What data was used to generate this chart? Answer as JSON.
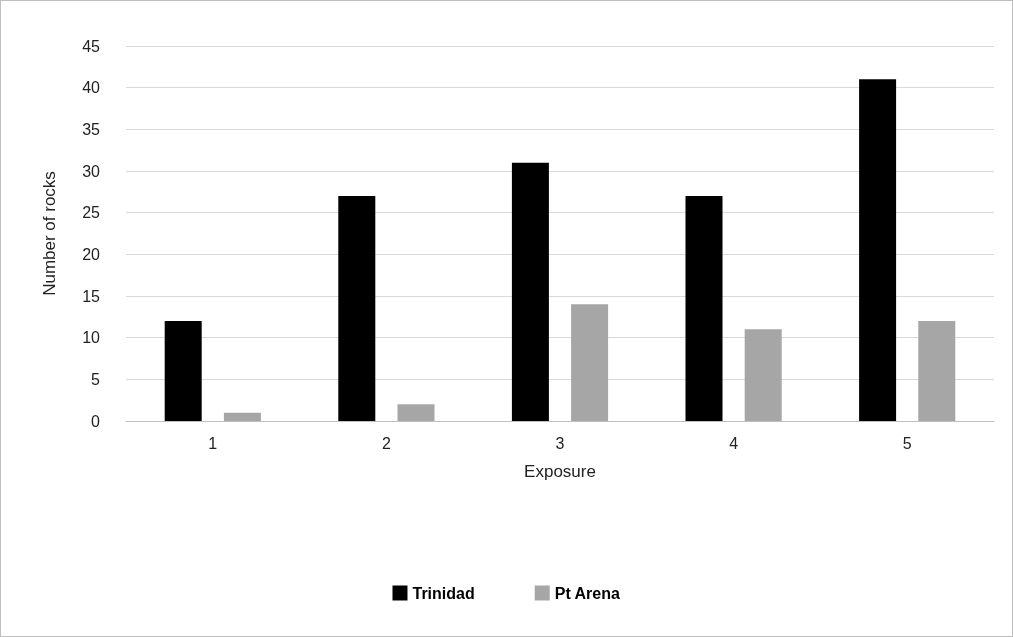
{
  "chart_data": {
    "type": "bar",
    "xlabel": "Exposure",
    "ylabel": "Number of rocks",
    "categories": [
      "1",
      "2",
      "3",
      "4",
      "5"
    ],
    "series": [
      {
        "name": "Trinidad",
        "color": "#000000",
        "values": [
          12,
          27,
          31,
          27,
          41
        ]
      },
      {
        "name": "Pt Arena",
        "color": "#a6a6a6",
        "values": [
          1,
          2,
          14,
          11,
          12
        ]
      }
    ],
    "ylim": [
      0,
      45
    ],
    "yticks": [
      0,
      5,
      10,
      15,
      20,
      25,
      30,
      35,
      40,
      45
    ],
    "grid": "y",
    "legend": "bottom"
  }
}
